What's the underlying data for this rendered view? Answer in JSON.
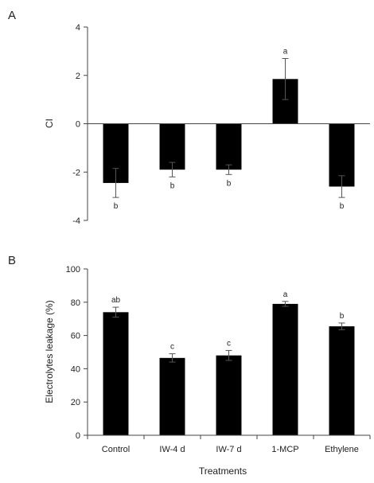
{
  "chart_data": [
    {
      "type": "bar",
      "panel_label": "A",
      "categories": [
        "Control",
        "IW-4 d",
        "IW-7 d",
        "1-MCP",
        "Ethylene"
      ],
      "values": [
        -2.45,
        -1.9,
        -1.9,
        1.85,
        -2.6
      ],
      "errors": [
        0.6,
        0.3,
        0.2,
        0.85,
        0.45
      ],
      "significance": [
        "b",
        "b",
        "b",
        "a",
        "b"
      ],
      "ylabel": "CI",
      "xlabel": "",
      "ylim": [
        -4,
        4
      ],
      "yticks": [
        -4,
        -2,
        0,
        2,
        4
      ],
      "yticklabels": [
        "-4",
        "-2",
        "0",
        "2",
        "4"
      ],
      "show_category_labels": false,
      "grid": false,
      "bar_color": "#000000"
    },
    {
      "type": "bar",
      "panel_label": "B",
      "categories": [
        "Control",
        "IW-4 d",
        "IW-7 d",
        "1-MCP",
        "Ethylene"
      ],
      "values": [
        74,
        46.5,
        48,
        79,
        65.5
      ],
      "errors": [
        3,
        2.5,
        3,
        1.5,
        2
      ],
      "significance": [
        "ab",
        "c",
        "c",
        "a",
        "b"
      ],
      "ylabel": "Electrolytes leakage (%)",
      "xlabel": "Treatments",
      "ylim": [
        0,
        100
      ],
      "yticks": [
        0,
        20,
        40,
        60,
        80,
        100
      ],
      "yticklabels": [
        "0",
        "20",
        "40",
        "60",
        "80",
        "100"
      ],
      "show_category_labels": true,
      "grid": false,
      "bar_color": "#000000"
    }
  ]
}
